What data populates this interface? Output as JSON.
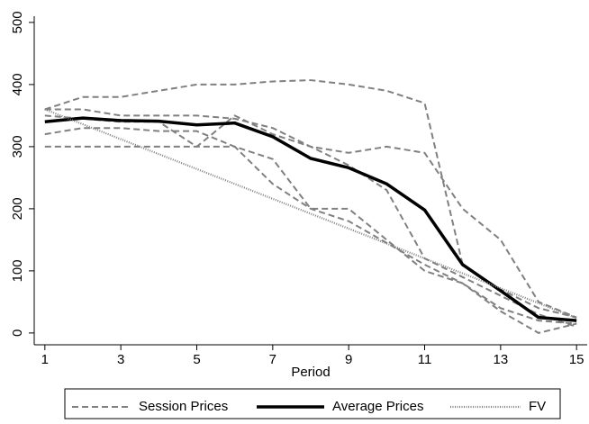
{
  "chart_data": {
    "type": "line",
    "x_label": "Period",
    "x": [
      1,
      2,
      3,
      4,
      5,
      6,
      7,
      8,
      9,
      10,
      11,
      12,
      13,
      14,
      15
    ],
    "xlim": [
      0.72,
      15.28
    ],
    "xticks": [
      1,
      3,
      5,
      7,
      9,
      11,
      13,
      15
    ],
    "ylim": [
      -19,
      510
    ],
    "yticks": [
      0,
      100,
      200,
      300,
      400,
      500
    ],
    "series": [
      {
        "name": "Session Prices",
        "color": "#808080",
        "style": "dashed",
        "values": [
          360,
          380,
          380,
          390,
          400,
          400,
          405,
          407,
          400,
          390,
          370,
          110,
          70,
          40,
          25
        ]
      },
      {
        "color": "#808080",
        "style": "dashed",
        "values": [
          360,
          360,
          350,
          350,
          350,
          345,
          330,
          300,
          290,
          300,
          290,
          200,
          150,
          50,
          25
        ]
      },
      {
        "color": "#808080",
        "style": "dashed",
        "values": [
          320,
          330,
          330,
          325,
          325,
          300,
          280,
          200,
          200,
          150,
          100,
          80,
          40,
          20,
          15
        ]
      },
      {
        "color": "#808080",
        "style": "dashed",
        "values": [
          300,
          300,
          300,
          300,
          300,
          300,
          240,
          200,
          180,
          145,
          110,
          80,
          35,
          0,
          15
        ]
      },
      {
        "color": "#808080",
        "style": "dashed",
        "values": [
          350,
          345,
          340,
          340,
          300,
          350,
          320,
          300,
          270,
          230,
          120,
          90,
          60,
          30,
          10
        ]
      },
      {
        "name": "Average Prices",
        "color": "#000000",
        "style": "solid",
        "values": [
          340,
          346,
          342,
          341,
          335,
          338,
          316,
          281,
          266,
          240,
          198,
          110,
          68,
          25,
          20
        ]
      },
      {
        "name": "FV",
        "color": "#808080",
        "style": "dotted",
        "values": [
          360,
          336,
          312,
          288,
          264,
          240,
          216,
          192,
          168,
          144,
          120,
          96,
          72,
          48,
          24
        ]
      }
    ]
  }
}
